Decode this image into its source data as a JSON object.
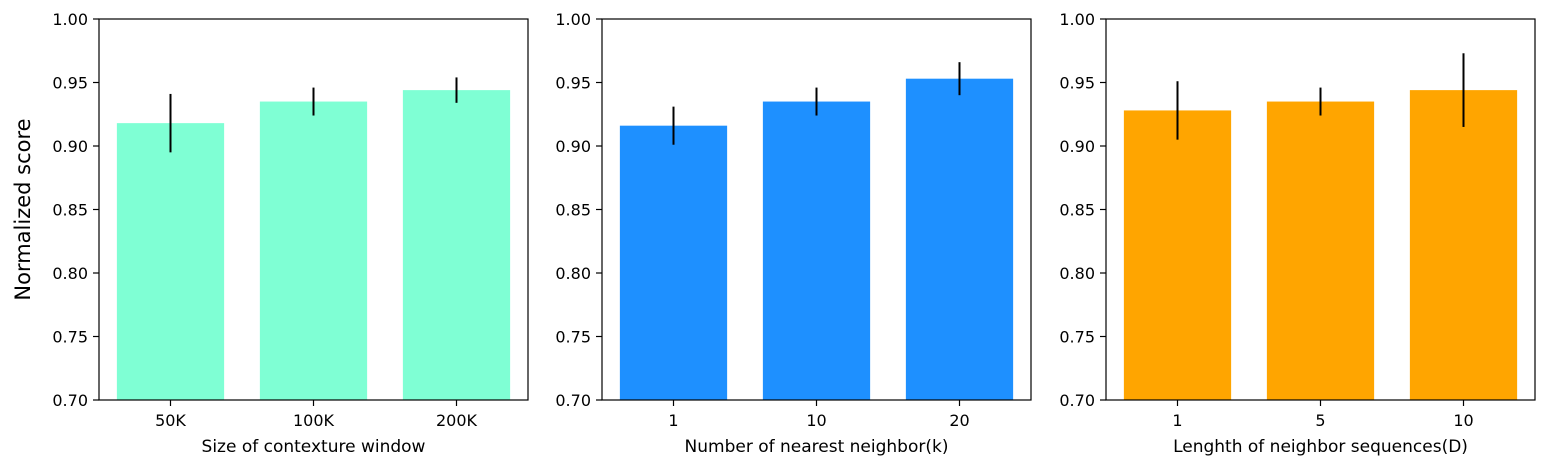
{
  "chart_data": [
    {
      "type": "bar",
      "title": "",
      "xlabel": "Size of contexture window",
      "ylabel": "Normalized score",
      "ylim": [
        0.7,
        1.0
      ],
      "yticks": [
        "0.70",
        "0.75",
        "0.80",
        "0.85",
        "0.90",
        "0.95",
        "1.00"
      ],
      "categories": [
        "50K",
        "100K",
        "200K"
      ],
      "values": [
        0.918,
        0.935,
        0.944
      ],
      "errors": [
        0.023,
        0.011,
        0.01
      ],
      "color": "#7FFFD4",
      "grid": false
    },
    {
      "type": "bar",
      "title": "",
      "xlabel": "Number of nearest neighbor(k)",
      "ylabel": "",
      "ylim": [
        0.7,
        1.0
      ],
      "yticks": [
        "0.70",
        "0.75",
        "0.80",
        "0.85",
        "0.90",
        "0.95",
        "1.00"
      ],
      "categories": [
        "1",
        "10",
        "20"
      ],
      "values": [
        0.916,
        0.935,
        0.953
      ],
      "errors": [
        0.015,
        0.011,
        0.013
      ],
      "color": "#1E90FF",
      "grid": false
    },
    {
      "type": "bar",
      "title": "",
      "xlabel": "Lenghth of neighbor sequences(D)",
      "ylabel": "",
      "ylim": [
        0.7,
        1.0
      ],
      "yticks": [
        "0.70",
        "0.75",
        "0.80",
        "0.85",
        "0.90",
        "0.95",
        "1.00"
      ],
      "categories": [
        "1",
        "5",
        "10"
      ],
      "values": [
        0.928,
        0.935,
        0.944
      ],
      "errors": [
        0.023,
        0.011,
        0.029
      ],
      "color": "#FFA500",
      "grid": false
    }
  ]
}
